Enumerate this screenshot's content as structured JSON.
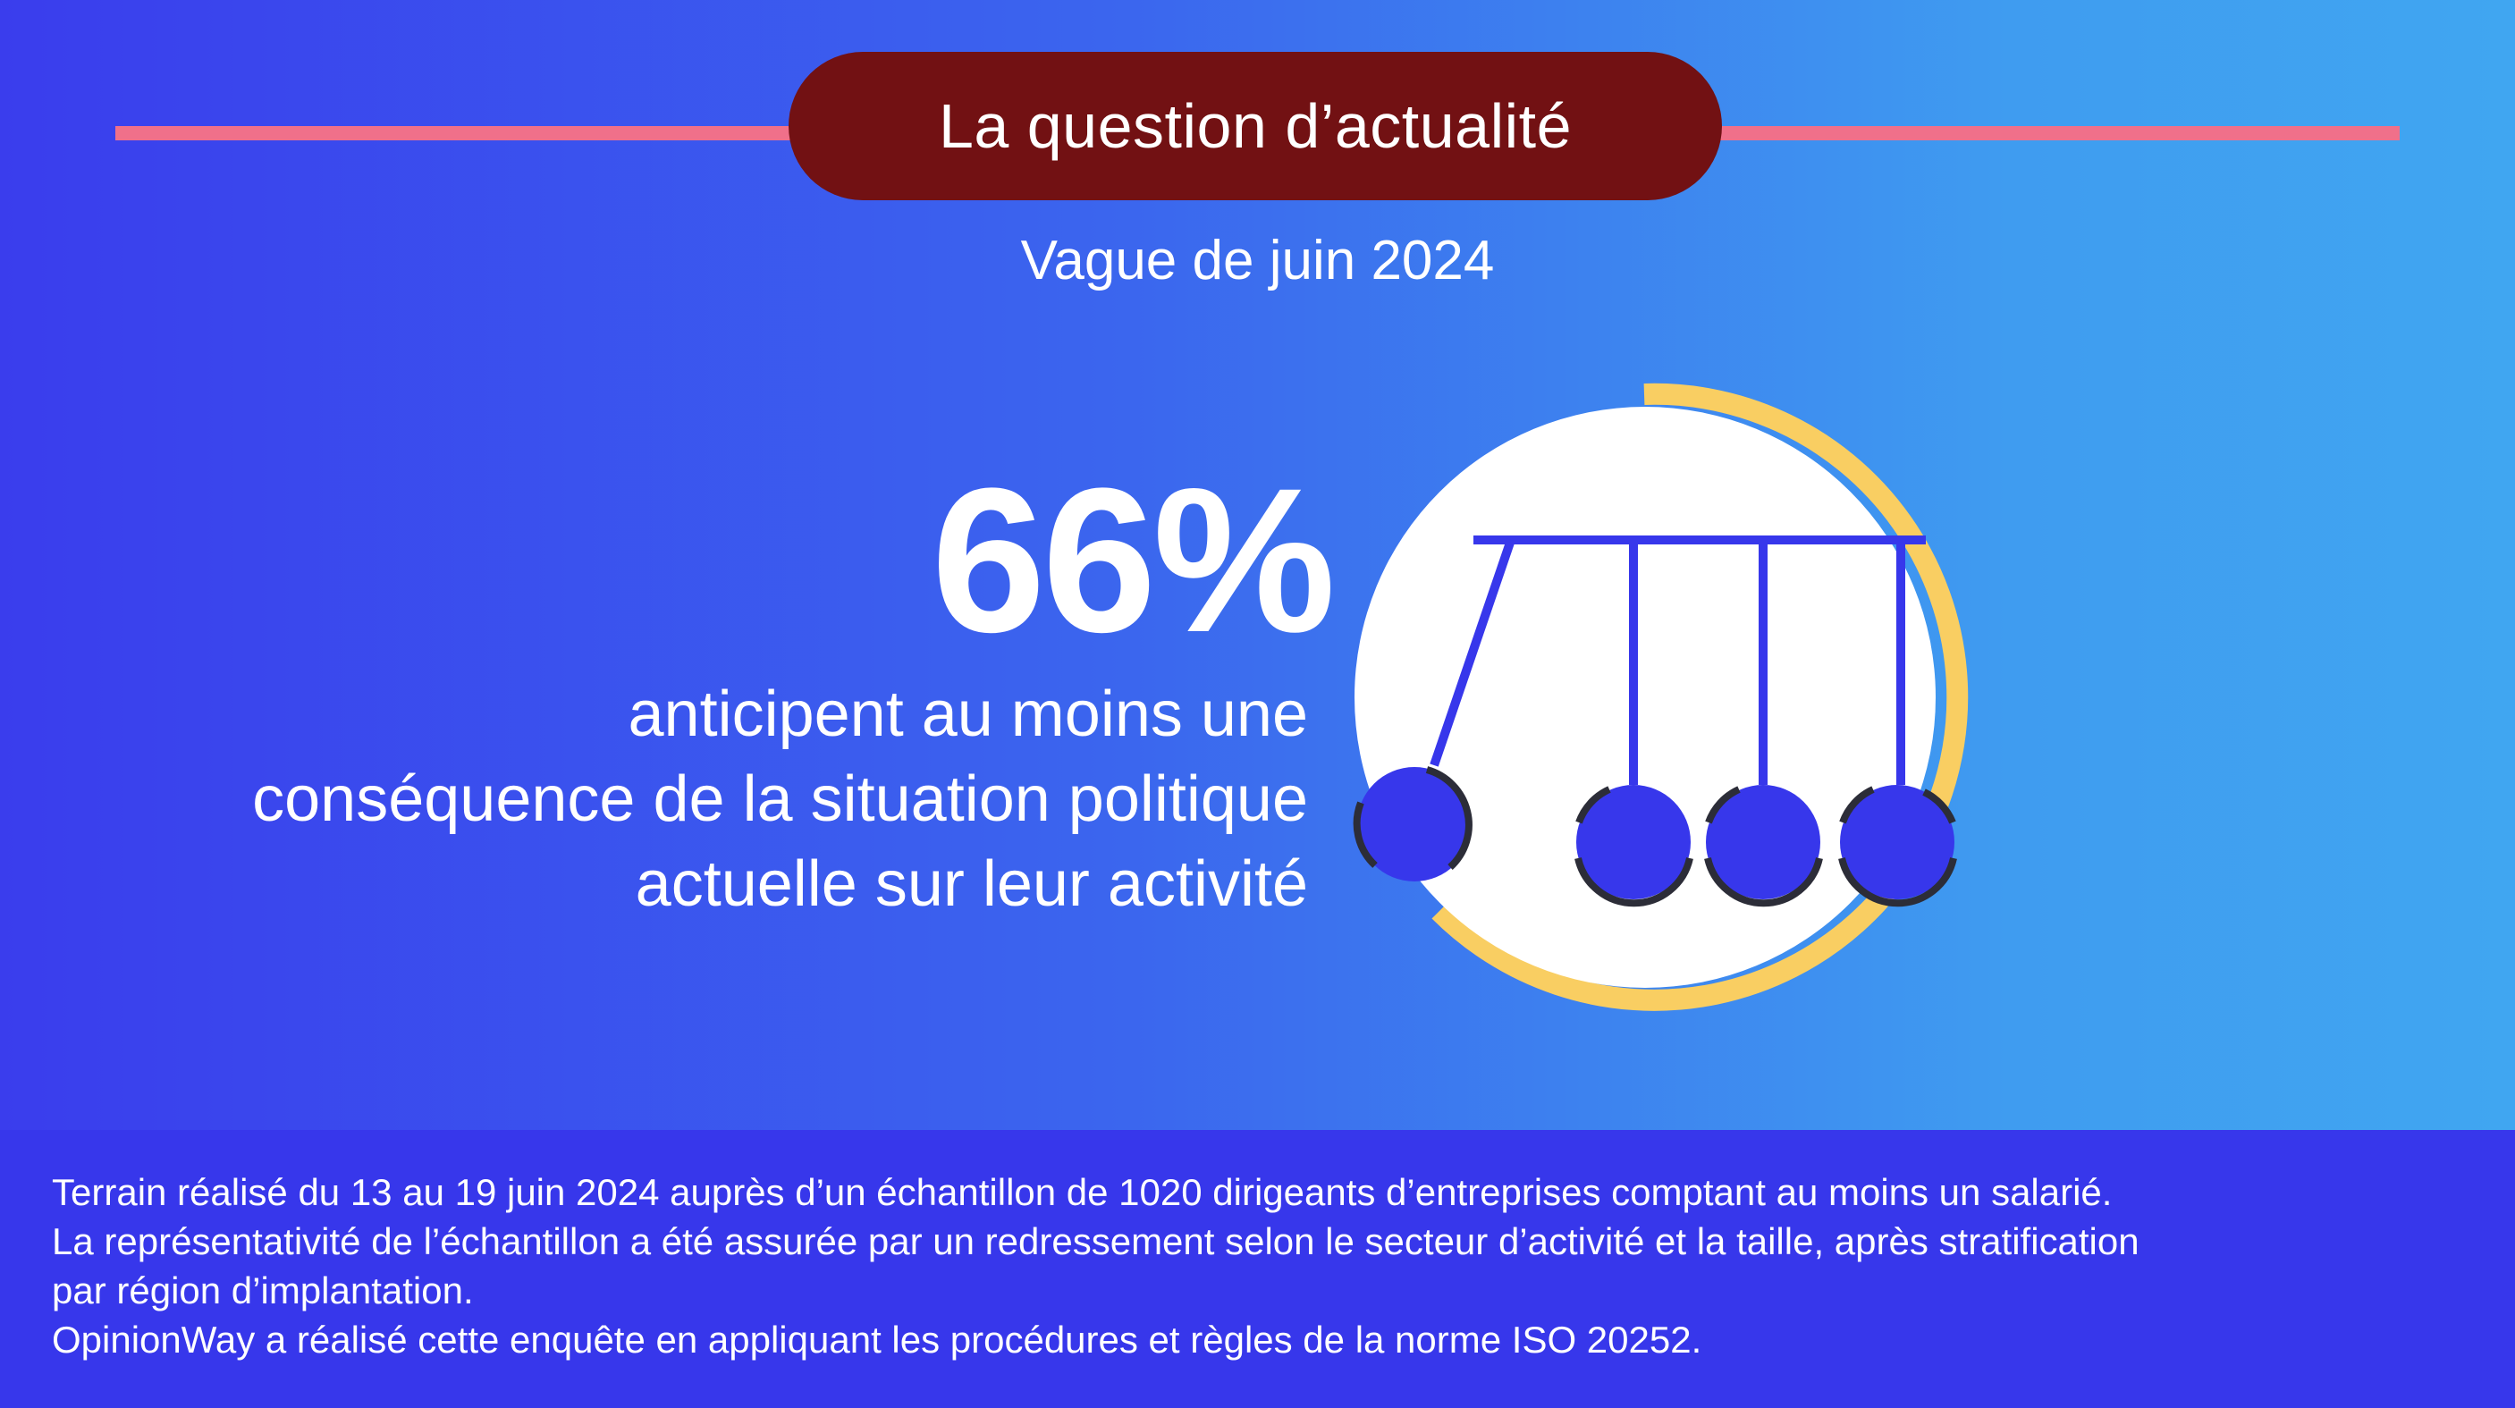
{
  "header": {
    "title": "La question d’actualité",
    "subtitle": "Vague de juin 2024"
  },
  "highlight": {
    "value": "66%",
    "caption_lines": [
      "anticipent au moins une",
      "conséquence de la situation politique",
      "actuelle sur leur activité"
    ]
  },
  "graphic": {
    "icon": "newtons-cradle-icon",
    "ring_color": "#f9ce62",
    "ball_color": "#3737eb"
  },
  "footer": {
    "lines": [
      "Terrain réalisé du 13 au 19 juin 2024 auprès d’un échantillon de 1020 dirigeants d’entreprises comptant au moins un salarié.",
      "La représentativité de l’échantillon a été assurée par un redressement selon le secteur d’activité et la taille, après stratification",
      "par région d’implantation.",
      "OpinionWay a réalisé cette enquête en appliquant les procédures et règles de la norme ISO 20252."
    ]
  },
  "colors": {
    "title_pill": "#721113",
    "rule": "#f0708a",
    "footer_bg": "#3737eb"
  }
}
